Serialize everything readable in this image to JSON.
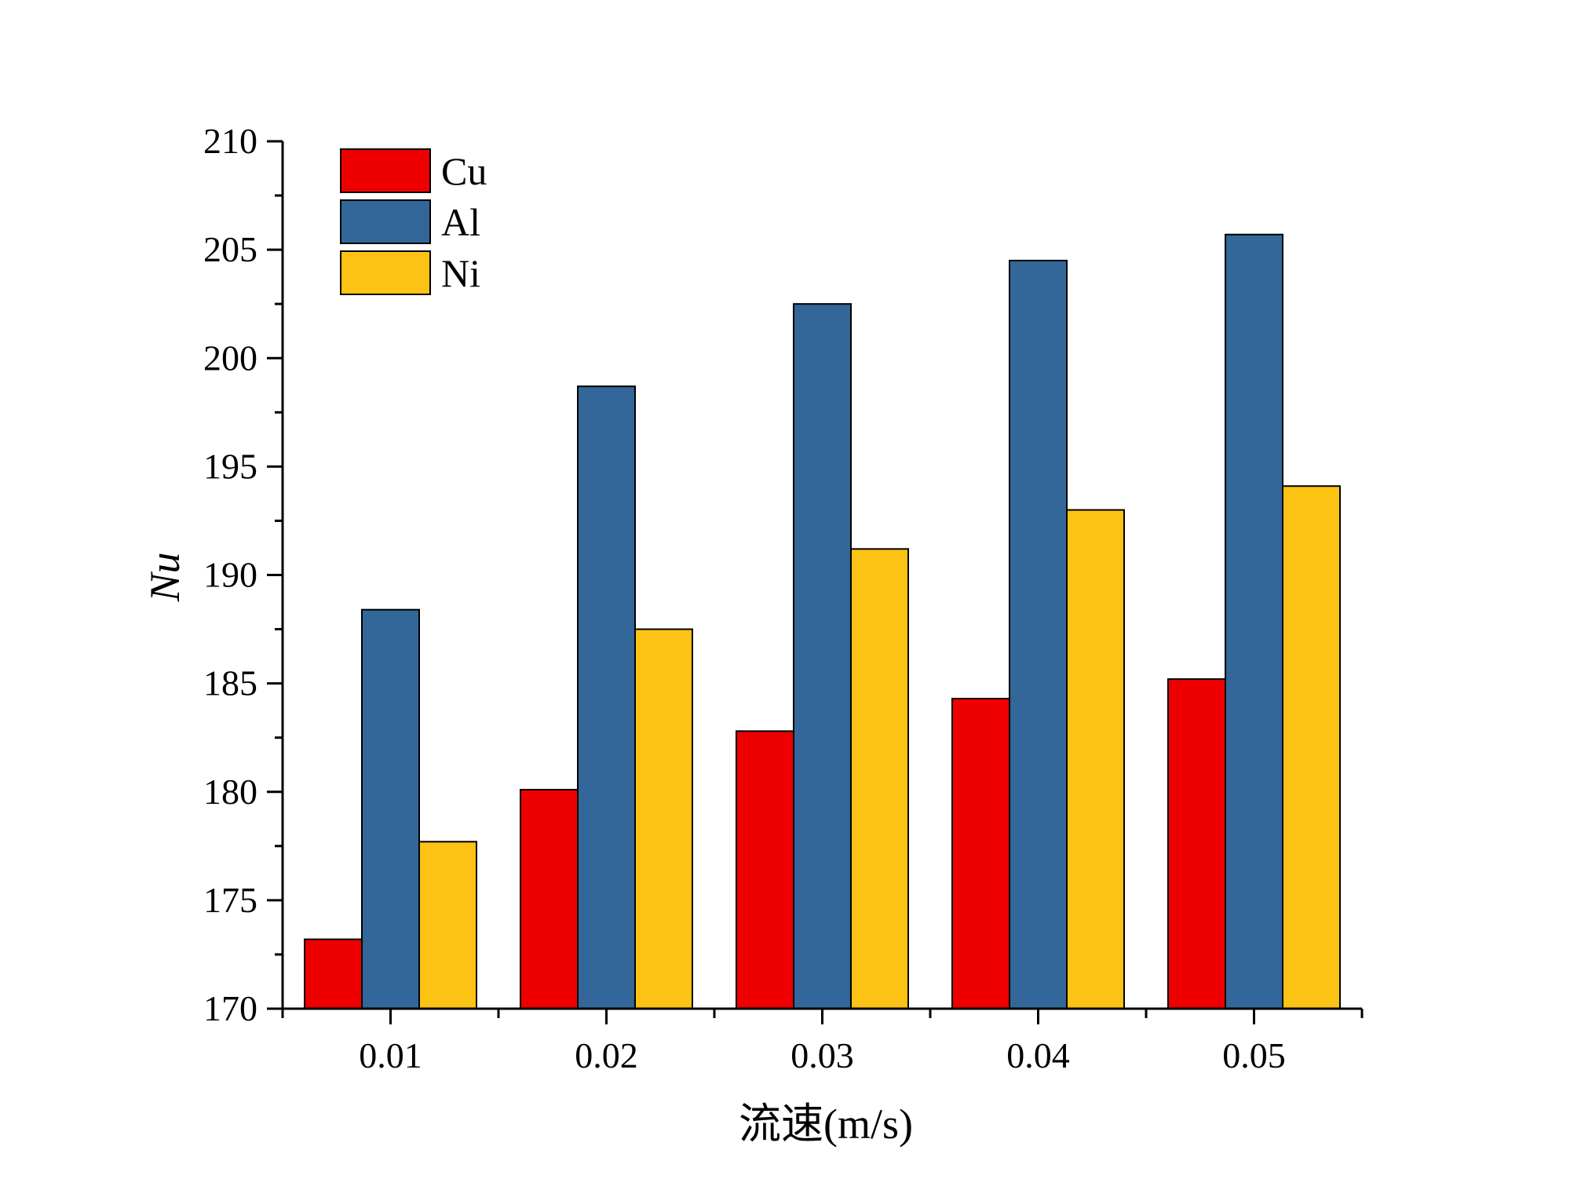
{
  "chart_data": {
    "type": "bar",
    "categories": [
      "0.01",
      "0.02",
      "0.03",
      "0.04",
      "0.05"
    ],
    "series": [
      {
        "name": "Cu",
        "color": "#ee0000",
        "values": [
          173.2,
          180.1,
          182.8,
          184.3,
          185.2
        ]
      },
      {
        "name": "Al",
        "color": "#336699",
        "values": [
          188.4,
          198.7,
          202.5,
          204.5,
          205.7
        ]
      },
      {
        "name": "Ni",
        "color": "#fcc214",
        "values": [
          177.7,
          187.5,
          191.2,
          193.0,
          194.1
        ]
      }
    ],
    "xlabel": "流速(m/s)",
    "ylabel": "Nu",
    "ylim": [
      170,
      210
    ],
    "yticks": [
      "170",
      "175",
      "180",
      "185",
      "190",
      "195",
      "200",
      "205",
      "210"
    ],
    "legend_position": "top-left",
    "grid": false
  }
}
